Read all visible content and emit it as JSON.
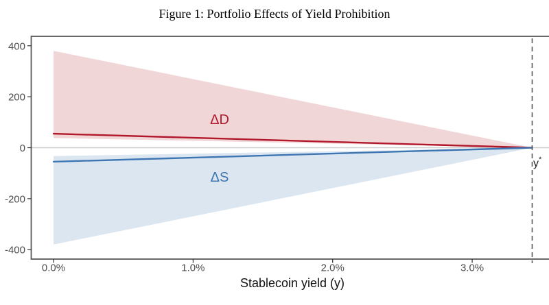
{
  "chart_data": {
    "type": "line",
    "title": "Figure 1: Portfolio Effects of Yield Prohibition",
    "xlabel": "Stablecoin yield (y)",
    "ylabel": "",
    "x_unit": "percent",
    "xlim": [
      -0.16,
      3.58
    ],
    "ylim": [
      -437,
      437
    ],
    "x_ticks": [
      {
        "value": 0,
        "label": "0.0%"
      },
      {
        "value": 1,
        "label": "1.0%"
      },
      {
        "value": 2,
        "label": "2.0%"
      },
      {
        "value": 3,
        "label": "3.0%"
      }
    ],
    "y_ticks": [
      {
        "value": 400,
        "label": "400"
      },
      {
        "value": 200,
        "label": "200"
      },
      {
        "value": 0,
        "label": "0"
      },
      {
        "value": -200,
        "label": "-200"
      },
      {
        "value": -400,
        "label": "-400"
      }
    ],
    "grid": false,
    "legend": "none",
    "series": [
      {
        "name": "ΔD",
        "color": "#b2182b",
        "fill": "#f1d6d8",
        "x": [
          0,
          3.43
        ],
        "line": [
          55,
          0
        ],
        "band_upper": [
          380,
          0
        ],
        "band_lower": [
          38,
          0
        ],
        "label": "ΔD",
        "label_pos": {
          "x": 1.19,
          "y": 109
        },
        "label_size": 20
      },
      {
        "name": "ΔS",
        "color": "#3d76b2",
        "fill": "#dbe6f0",
        "x": [
          0,
          3.43
        ],
        "line": [
          -55,
          0
        ],
        "band_upper": [
          -33,
          0
        ],
        "band_lower": [
          -380,
          0
        ],
        "label": "ΔS",
        "label_pos": {
          "x": 1.19,
          "y": -117
        },
        "label_size": 20
      }
    ],
    "hline": {
      "y": 0,
      "color": "#cccccc"
    },
    "vline": {
      "x": 3.43,
      "style": "dashed",
      "color": "#555555",
      "label_base": "y",
      "label_sup": "*",
      "label_text": "y*",
      "label_pos": {
        "x": 3.43,
        "y": -74
      },
      "label_color": "#222222",
      "label_size": 16
    },
    "axis_text_color": "#4d4d4d",
    "tick_color": "#333333",
    "border_color": "#575757"
  }
}
